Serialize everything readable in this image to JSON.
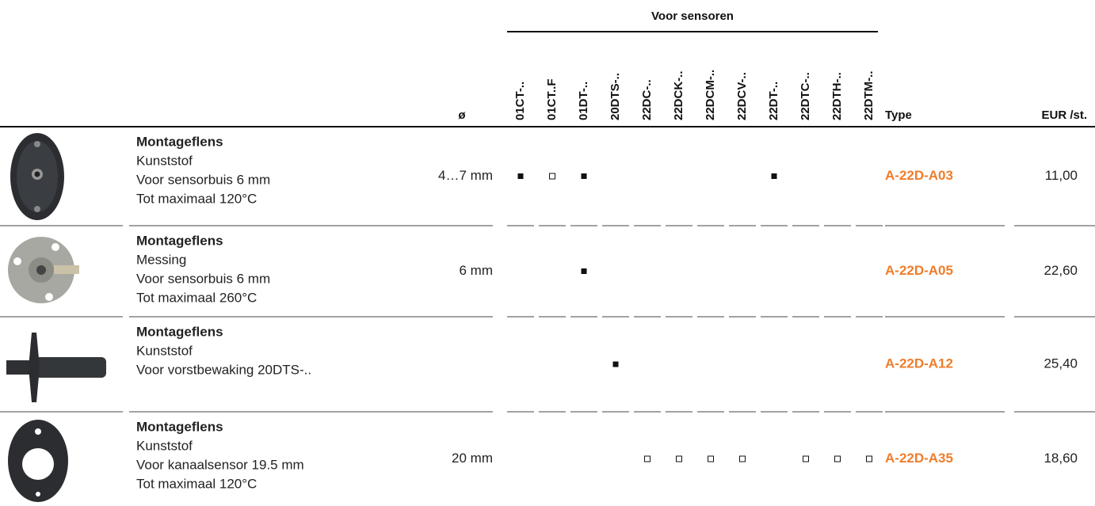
{
  "header": {
    "group": "Voor sensoren",
    "diameter": "ø",
    "sensors": [
      "01CT-..",
      "01CT..F",
      "01DT-..",
      "20DTS-..",
      "22DC-..",
      "22DCK-..",
      "22DCM-..",
      "22DCV-..",
      "22DT-..",
      "22DTC-..",
      "22DTH-..",
      "22DTM-.."
    ],
    "type": "Type",
    "price": "EUR /st."
  },
  "rows": [
    {
      "name": "Montageflens",
      "lines": [
        "Kunststof",
        "Voor sensorbuis 6 mm",
        "Tot maximaal 120°C"
      ],
      "diameter": "4…7 mm",
      "marks": [
        "filled",
        "open",
        "filled",
        null,
        null,
        null,
        null,
        null,
        "filled",
        null,
        null,
        null
      ],
      "type": "A-22D-A03",
      "price": "11,00"
    },
    {
      "name": "Montageflens",
      "lines": [
        "Messing",
        "Voor sensorbuis 6 mm",
        "Tot maximaal 260°C"
      ],
      "diameter": "6 mm",
      "marks": [
        null,
        null,
        "filled",
        null,
        null,
        null,
        null,
        null,
        null,
        null,
        null,
        null
      ],
      "type": "A-22D-A05",
      "price": "22,60"
    },
    {
      "name": "Montageflens",
      "lines": [
        "Kunststof",
        "Voor vorstbewaking 20DTS-.."
      ],
      "diameter": null,
      "marks": [
        null,
        null,
        null,
        "filled",
        null,
        null,
        null,
        null,
        null,
        null,
        null,
        null
      ],
      "type": "A-22D-A12",
      "price": "25,40"
    },
    {
      "name": "Montageflens",
      "lines": [
        "Kunststof",
        "Voor kanaalsensor 19.5 mm",
        "Tot maximaal 120°C"
      ],
      "diameter": "20 mm",
      "marks": [
        null,
        null,
        null,
        null,
        "open",
        "open",
        "open",
        "open",
        null,
        "open",
        "open",
        "open"
      ],
      "type": "A-22D-A35",
      "price": "18,60"
    }
  ]
}
